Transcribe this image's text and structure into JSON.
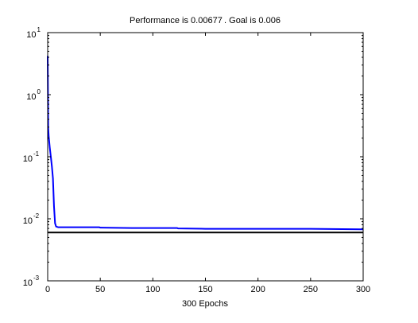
{
  "chart_data": {
    "type": "line",
    "title": "Performance is 0.00677 .     Goal is 0.006",
    "xlabel": "300 Epochs",
    "ylabel": "",
    "xlim": [
      0,
      300
    ],
    "ylim": [
      0.001,
      10
    ],
    "yscale": "log",
    "grid": false,
    "x_ticks": [
      0,
      50,
      100,
      150,
      200,
      250,
      300
    ],
    "x_tick_labels": [
      "0",
      "50",
      "100",
      "150",
      "200",
      "250",
      "300"
    ],
    "y_ticks": [
      0.001,
      0.01,
      0.1,
      1,
      10
    ],
    "y_tick_labels": [
      {
        "base": "10",
        "exp": "-3"
      },
      {
        "base": "10",
        "exp": "-2"
      },
      {
        "base": "10",
        "exp": "-1"
      },
      {
        "base": "10",
        "exp": "0"
      },
      {
        "base": "10",
        "exp": "1"
      }
    ],
    "series": [
      {
        "color": "#0000ff",
        "x": [
          0,
          0.5,
          1,
          2,
          3,
          4,
          5,
          6,
          7,
          8,
          10,
          15,
          20,
          30,
          49,
          50,
          80,
          100,
          123,
          124,
          150,
          200,
          250,
          300
        ],
        "y": [
          4.2,
          0.3,
          0.21,
          0.14,
          0.1,
          0.07,
          0.045,
          0.016,
          0.0085,
          0.0075,
          0.0073,
          0.0073,
          0.0073,
          0.0073,
          0.0073,
          0.0072,
          0.0071,
          0.0071,
          0.0071,
          0.007,
          0.0069,
          0.0069,
          0.0069,
          0.00677
        ]
      }
    ],
    "goal": {
      "value": 0.006,
      "color": "#000000"
    }
  }
}
